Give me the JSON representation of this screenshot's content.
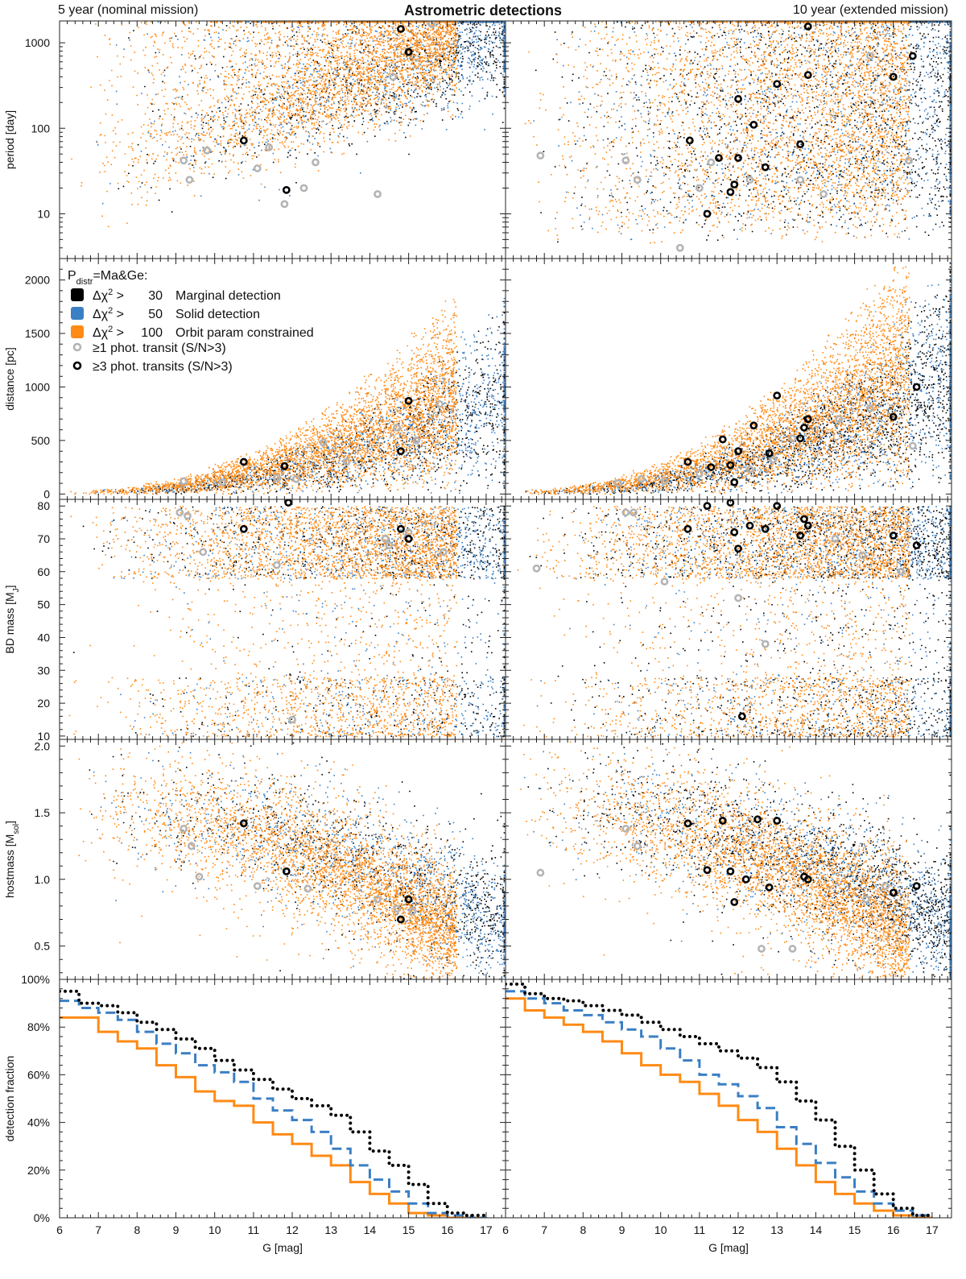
{
  "title": "Astrometric detections",
  "subtitles": {
    "left": "5 year (nominal mission)",
    "right": "10 year (extended mission)"
  },
  "colors": {
    "marginal": "#000000",
    "solid": "#3a7fc4",
    "orbit": "#ff8a14",
    "transit1": "#b4b4b4",
    "transit3": "#000000"
  },
  "legend": {
    "header_main": "P",
    "header_sub": "distr",
    "header_rest": "=Ma&Ge:",
    "entries": [
      {
        "key": "marginal",
        "threshold": "30",
        "label": "Marginal detection"
      },
      {
        "key": "solid",
        "threshold": "50",
        "label": "Solid detection"
      },
      {
        "key": "orbit",
        "threshold": "100",
        "label": "Orbit param constrained"
      }
    ],
    "chi_prefix": "Δχ",
    "chi_power": "2",
    "transit1_label": "≥1 phot. transit   (S/N>3)",
    "transit3_label": "≥3 phot. transits (S/N>3)"
  },
  "xlabel": "G [mag]",
  "x_ticks": [
    "6",
    "7",
    "8",
    "9",
    "10",
    "11",
    "12",
    "13",
    "14",
    "15",
    "16",
    "17"
  ],
  "chart_data": [
    {
      "type": "scatter",
      "panel": "period",
      "ylabel": "period [day]",
      "yscale": "log",
      "ylim": [
        3,
        1800
      ],
      "y_ticks": [
        "10",
        "100",
        "1000"
      ],
      "xlim": [
        6,
        17.5
      ],
      "series": [
        "marginal",
        "solid",
        "orbit"
      ],
      "transits_5yr": {
        "gray": [
          [
            9.2,
            42
          ],
          [
            9.35,
            25
          ],
          [
            9.8,
            55
          ],
          [
            11.1,
            34
          ],
          [
            11.4,
            60
          ],
          [
            11.8,
            13
          ],
          [
            12.3,
            20
          ],
          [
            12.6,
            40
          ],
          [
            14.2,
            17
          ],
          [
            14.6,
            400
          ],
          [
            15.6,
            1650
          ]
        ],
        "black": [
          [
            10.75,
            72
          ],
          [
            11.85,
            19
          ],
          [
            14.8,
            1450
          ],
          [
            15.0,
            780
          ]
        ]
      },
      "transits_10yr": {
        "gray": [
          [
            6.9,
            48
          ],
          [
            9.1,
            42
          ],
          [
            9.4,
            25
          ],
          [
            10.5,
            4
          ],
          [
            11.0,
            20
          ],
          [
            11.3,
            40
          ],
          [
            12.3,
            25
          ],
          [
            13.6,
            25
          ],
          [
            14.2,
            17
          ],
          [
            15.4,
            700
          ],
          [
            16.4,
            42
          ]
        ],
        "black": [
          [
            10.75,
            72
          ],
          [
            11.5,
            45
          ],
          [
            11.2,
            10
          ],
          [
            11.8,
            18
          ],
          [
            11.9,
            22
          ],
          [
            12.0,
            45
          ],
          [
            12.0,
            220
          ],
          [
            12.4,
            110
          ],
          [
            12.7,
            35
          ],
          [
            13.0,
            330
          ],
          [
            13.6,
            65
          ],
          [
            13.8,
            420
          ],
          [
            13.8,
            1550
          ],
          [
            16.0,
            400
          ],
          [
            16.5,
            700
          ]
        ]
      }
    },
    {
      "type": "scatter",
      "panel": "distance",
      "ylabel": "distance [pc]",
      "ylim": [
        -50,
        2200
      ],
      "y_ticks": [
        "0",
        "500",
        "1000",
        "1500",
        "2000"
      ],
      "xlim": [
        6,
        17.5
      ],
      "series": [
        "marginal",
        "solid",
        "orbit"
      ],
      "transits_5yr": {
        "gray": [
          [
            9.2,
            120
          ],
          [
            10.2,
            110
          ],
          [
            11.6,
            150
          ],
          [
            12.1,
            140
          ],
          [
            12.8,
            480
          ],
          [
            13.4,
            300
          ],
          [
            14.7,
            620
          ],
          [
            15.2,
            500
          ],
          [
            15.8,
            840
          ]
        ],
        "black": [
          [
            10.75,
            300
          ],
          [
            11.8,
            260
          ],
          [
            14.8,
            400
          ],
          [
            15.0,
            870
          ]
        ]
      },
      "transits_10yr": {
        "gray": [
          [
            8.9,
            100
          ],
          [
            9.5,
            140
          ],
          [
            10.1,
            120
          ],
          [
            11.0,
            190
          ],
          [
            12.3,
            230
          ],
          [
            12.9,
            320
          ],
          [
            13.4,
            520
          ],
          [
            14.6,
            700
          ],
          [
            15.4,
            800
          ],
          [
            16.5,
            450
          ]
        ],
        "black": [
          [
            10.7,
            300
          ],
          [
            11.3,
            250
          ],
          [
            11.6,
            510
          ],
          [
            11.8,
            270
          ],
          [
            11.9,
            110
          ],
          [
            12.0,
            400
          ],
          [
            12.4,
            640
          ],
          [
            12.8,
            380
          ],
          [
            13.0,
            920
          ],
          [
            13.6,
            520
          ],
          [
            13.8,
            700
          ],
          [
            13.7,
            620
          ],
          [
            16.0,
            720
          ],
          [
            16.6,
            1000
          ]
        ]
      }
    },
    {
      "type": "scatter",
      "panel": "bd_mass",
      "ylabel": "BD mass [M_J]",
      "ylabel_main": "BD mass [M",
      "ylabel_sub": "J",
      "ylabel_end": "]",
      "ylim": [
        9,
        82
      ],
      "y_ticks": [
        "10",
        "20",
        "30",
        "40",
        "50",
        "60",
        "70",
        "80"
      ],
      "xlim": [
        6,
        17.5
      ],
      "series": [
        "marginal",
        "solid",
        "orbit"
      ],
      "transits_5yr": {
        "gray": [
          [
            9.1,
            78
          ],
          [
            9.3,
            77
          ],
          [
            9.7,
            66
          ],
          [
            11.6,
            62
          ],
          [
            12.0,
            15
          ],
          [
            14.4,
            70
          ],
          [
            14.5,
            68
          ],
          [
            15.0,
            72
          ],
          [
            15.9,
            66
          ]
        ],
        "black": [
          [
            10.75,
            73
          ],
          [
            11.9,
            81
          ],
          [
            14.8,
            73
          ],
          [
            15.0,
            70
          ]
        ]
      },
      "transits_10yr": {
        "gray": [
          [
            6.8,
            61
          ],
          [
            9.1,
            78
          ],
          [
            9.3,
            78
          ],
          [
            10.1,
            57
          ],
          [
            12.0,
            52
          ],
          [
            12.7,
            38
          ],
          [
            14.5,
            70
          ],
          [
            15.2,
            65
          ],
          [
            16.2,
            60
          ]
        ],
        "black": [
          [
            10.7,
            73
          ],
          [
            11.2,
            80
          ],
          [
            11.8,
            81
          ],
          [
            11.9,
            72
          ],
          [
            12.0,
            67
          ],
          [
            12.3,
            74
          ],
          [
            12.7,
            73
          ],
          [
            13.0,
            80
          ],
          [
            13.6,
            71
          ],
          [
            13.7,
            76
          ],
          [
            13.8,
            74
          ],
          [
            16.0,
            71
          ],
          [
            16.6,
            68
          ],
          [
            12.1,
            16
          ]
        ]
      }
    },
    {
      "type": "scatter",
      "panel": "hostmass",
      "ylabel": "hostmass [M_sol]",
      "ylabel_main": "hostmass [M",
      "ylabel_sub": "sol",
      "ylabel_end": "]",
      "ylim": [
        0.25,
        2.05
      ],
      "y_ticks": [
        "0.5",
        "1.0",
        "1.5",
        "2.0"
      ],
      "xlim": [
        6,
        17.5
      ],
      "series": [
        "marginal",
        "solid",
        "orbit"
      ],
      "transits_5yr": {
        "gray": [
          [
            9.2,
            1.38
          ],
          [
            9.4,
            1.25
          ],
          [
            9.6,
            1.02
          ],
          [
            11.1,
            0.95
          ],
          [
            12.4,
            0.93
          ],
          [
            14.2,
            0.85
          ],
          [
            14.7,
            0.78
          ],
          [
            15.1,
            0.76
          ]
        ],
        "black": [
          [
            10.75,
            1.42
          ],
          [
            11.85,
            1.06
          ],
          [
            14.8,
            0.7
          ],
          [
            15.0,
            0.85
          ]
        ]
      },
      "transits_10yr": {
        "gray": [
          [
            6.9,
            1.05
          ],
          [
            9.1,
            1.38
          ],
          [
            9.4,
            1.25
          ],
          [
            12.6,
            0.48
          ],
          [
            13.4,
            0.48
          ],
          [
            15.3,
            0.85
          ],
          [
            15.8,
            0.95
          ]
        ],
        "black": [
          [
            10.7,
            1.42
          ],
          [
            11.2,
            1.07
          ],
          [
            11.6,
            1.44
          ],
          [
            11.8,
            1.06
          ],
          [
            11.9,
            0.83
          ],
          [
            12.2,
            1.0
          ],
          [
            12.5,
            1.45
          ],
          [
            12.8,
            0.94
          ],
          [
            13.0,
            1.44
          ],
          [
            13.7,
            1.02
          ],
          [
            13.8,
            1.0
          ],
          [
            16.0,
            0.9
          ],
          [
            16.6,
            0.95
          ]
        ]
      }
    },
    {
      "type": "line",
      "panel": "detection_fraction",
      "ylabel": "detection fraction",
      "ylim": [
        0,
        1.0
      ],
      "y_ticks": [
        "0%",
        "20%",
        "40%",
        "60%",
        "80%",
        "100%"
      ],
      "xlim": [
        6,
        17.5
      ],
      "bin_width": 0.5,
      "bin_starts": [
        6.0,
        6.5,
        7.0,
        7.5,
        8.0,
        8.5,
        9.0,
        9.5,
        10.0,
        10.5,
        11.0,
        11.5,
        12.0,
        12.5,
        13.0,
        13.5,
        14.0,
        14.5,
        15.0,
        15.5,
        16.0,
        16.5
      ],
      "five_year": {
        "marginal": [
          0.95,
          0.9,
          0.89,
          0.86,
          0.82,
          0.79,
          0.75,
          0.71,
          0.66,
          0.62,
          0.58,
          0.54,
          0.5,
          0.47,
          0.43,
          0.36,
          0.28,
          0.22,
          0.14,
          0.06,
          0.02,
          0.01
        ],
        "solid": [
          0.91,
          0.88,
          0.86,
          0.83,
          0.78,
          0.73,
          0.69,
          0.64,
          0.61,
          0.57,
          0.5,
          0.45,
          0.41,
          0.36,
          0.29,
          0.22,
          0.16,
          0.11,
          0.06,
          0.02,
          0.01,
          0.0
        ],
        "orbit": [
          0.84,
          0.84,
          0.78,
          0.74,
          0.71,
          0.64,
          0.59,
          0.53,
          0.49,
          0.47,
          0.4,
          0.35,
          0.31,
          0.26,
          0.22,
          0.15,
          0.1,
          0.06,
          0.02,
          0.01,
          0.0,
          0.0
        ]
      },
      "ten_year": {
        "marginal": [
          0.98,
          0.94,
          0.92,
          0.91,
          0.89,
          0.87,
          0.85,
          0.82,
          0.79,
          0.76,
          0.73,
          0.7,
          0.67,
          0.63,
          0.57,
          0.49,
          0.41,
          0.3,
          0.2,
          0.1,
          0.04,
          0.01
        ],
        "solid": [
          0.95,
          0.92,
          0.9,
          0.87,
          0.85,
          0.82,
          0.79,
          0.76,
          0.71,
          0.66,
          0.6,
          0.56,
          0.51,
          0.46,
          0.38,
          0.31,
          0.23,
          0.17,
          0.11,
          0.06,
          0.03,
          0.01
        ],
        "orbit": [
          0.92,
          0.87,
          0.84,
          0.81,
          0.78,
          0.74,
          0.69,
          0.64,
          0.6,
          0.57,
          0.52,
          0.47,
          0.41,
          0.36,
          0.29,
          0.22,
          0.15,
          0.1,
          0.06,
          0.03,
          0.01,
          0.0
        ]
      }
    }
  ]
}
